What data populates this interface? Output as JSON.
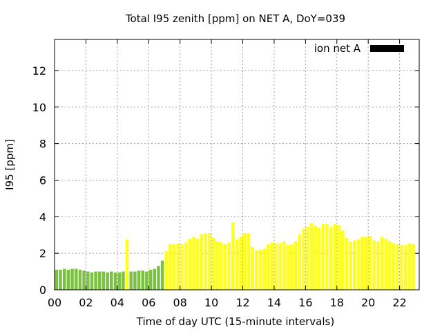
{
  "chart_data": {
    "type": "bar",
    "title": "Total I95 zenith [ppm] on NET A, DoY=039",
    "xlabel": "Time of day UTC (15-minute intervals)",
    "ylabel": "I95 [ppm]",
    "xlim": [
      0,
      23.25
    ],
    "ylim": [
      0,
      13.7
    ],
    "grid": true,
    "legend": {
      "position": "top-right",
      "entries": [
        {
          "label": "ion net A",
          "color": "#000000"
        }
      ]
    },
    "x_ticks": [
      {
        "value": 0,
        "label": "00"
      },
      {
        "value": 2,
        "label": "02"
      },
      {
        "value": 4,
        "label": "04"
      },
      {
        "value": 6,
        "label": "06"
      },
      {
        "value": 8,
        "label": "08"
      },
      {
        "value": 10,
        "label": "10"
      },
      {
        "value": 12,
        "label": "12"
      },
      {
        "value": 14,
        "label": "14"
      },
      {
        "value": 16,
        "label": "16"
      },
      {
        "value": 18,
        "label": "18"
      },
      {
        "value": 20,
        "label": "20"
      },
      {
        "value": 22,
        "label": "22"
      }
    ],
    "y_ticks": [
      {
        "value": 0,
        "label": "0"
      },
      {
        "value": 2,
        "label": "2"
      },
      {
        "value": 4,
        "label": "4"
      },
      {
        "value": 6,
        "label": "6"
      },
      {
        "value": 8,
        "label": "8"
      },
      {
        "value": 10,
        "label": "10"
      },
      {
        "value": 12,
        "label": "12"
      }
    ],
    "colors": {
      "low": "#7cc242",
      "high": "#ffff1a",
      "threshold": 2.0
    },
    "bar_interval_hours": 0.25,
    "values": [
      1.1,
      1.1,
      1.15,
      1.1,
      1.15,
      1.15,
      1.1,
      1.05,
      1.0,
      0.95,
      1.0,
      1.0,
      1.0,
      0.95,
      1.0,
      0.95,
      0.95,
      1.0,
      2.75,
      1.0,
      1.0,
      1.05,
      1.05,
      1.0,
      1.1,
      1.15,
      1.3,
      1.6,
      2.1,
      2.5,
      2.5,
      2.55,
      2.5,
      2.6,
      2.8,
      2.9,
      2.8,
      3.05,
      3.1,
      3.1,
      2.85,
      2.65,
      2.6,
      2.5,
      2.6,
      3.7,
      2.75,
      2.9,
      3.1,
      3.1,
      2.35,
      2.15,
      2.2,
      2.25,
      2.5,
      2.6,
      2.55,
      2.55,
      2.65,
      2.45,
      2.5,
      2.65,
      3.05,
      3.35,
      3.45,
      3.65,
      3.5,
      3.4,
      3.6,
      3.6,
      3.45,
      3.6,
      3.55,
      3.25,
      2.85,
      2.65,
      2.7,
      2.75,
      2.9,
      2.9,
      2.95,
      2.7,
      2.65,
      2.9,
      2.8,
      2.65,
      2.55,
      2.5,
      2.45,
      2.45,
      2.55,
      2.5
    ]
  }
}
